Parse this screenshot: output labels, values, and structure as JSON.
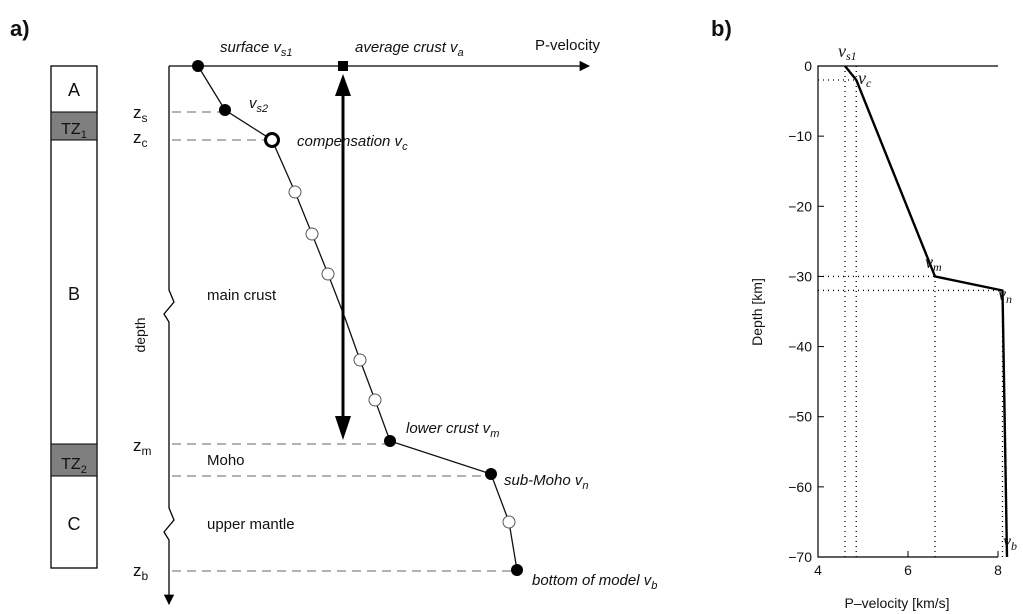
{
  "panel_a": {
    "label": "a)",
    "column": {
      "A": "A",
      "TZ1": "TZ",
      "TZ1_sub": "1",
      "B": "B",
      "TZ2": "TZ",
      "TZ2_sub": "2",
      "C": "C"
    },
    "depth_marks": {
      "zs": "z",
      "zs_sub": "s",
      "zc": "z",
      "zc_sub": "c",
      "zm": "z",
      "zm_sub": "m",
      "zb": "z",
      "zb_sub": "b"
    },
    "axis": {
      "x_label": "P-velocity",
      "y_label": "depth"
    },
    "labels": {
      "surface": "surface v",
      "surface_sub": "s1",
      "average": "average crust v",
      "average_sub": "a",
      "vs2": "v",
      "vs2_sub": "s2",
      "compensation": "compensation v",
      "compensation_sub": "c",
      "main_crust": "main crust",
      "lower_crust": "lower crust v",
      "lower_crust_sub": "m",
      "moho": "Moho",
      "sub_moho": "sub-Moho v",
      "sub_moho_sub": "n",
      "upper_mantle": "upper mantle",
      "bottom": "bottom of model v",
      "bottom_sub": "b"
    }
  },
  "panel_b": {
    "label": "b)",
    "x_label": "P–velocity [km/s]",
    "y_label": "Depth [km]",
    "annotations": {
      "vs1": "v",
      "vs1_sub": "s1",
      "vc": "v",
      "vc_sub": "c",
      "vm": "v",
      "vm_sub": "m",
      "vn": "v",
      "vn_sub": "n",
      "vb": "v",
      "vb_sub": "b"
    }
  },
  "chart_data": {
    "type": "line",
    "xlabel": "P–velocity [km/s]",
    "ylabel": "Depth [km]",
    "xlim": [
      4,
      9
    ],
    "ylim": [
      -70,
      0
    ],
    "xticks": [
      4,
      6,
      8
    ],
    "yticks": [
      0,
      -10,
      -20,
      -30,
      -40,
      -50,
      -60,
      -70
    ],
    "grid": false,
    "series": [
      {
        "x": [
          4.6,
          4.85,
          6.6,
          8.1,
          8.2
        ],
        "y": [
          0,
          -2,
          -30,
          -32,
          -70
        ]
      }
    ],
    "reference_lines": {
      "depths": [
        -2,
        -30,
        -32
      ],
      "velocities": [
        4.6,
        4.85,
        6.6,
        8.1
      ]
    }
  }
}
